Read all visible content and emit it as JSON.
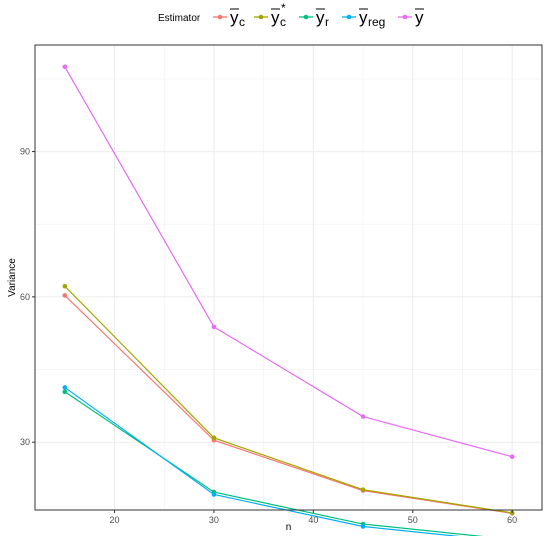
{
  "chart_data": {
    "type": "line",
    "title": "",
    "xlabel": "n",
    "ylabel": "Variance",
    "x": [
      15,
      30,
      45,
      60
    ],
    "xlim": [
      12,
      63
    ],
    "ylim": [
      16,
      112
    ],
    "xticks": [
      20,
      30,
      40,
      50,
      60
    ],
    "yticks": [
      30,
      60,
      90
    ],
    "grid": true,
    "legend": {
      "title": "Estimator",
      "placement": "top"
    },
    "series": [
      {
        "name": "yc",
        "display": {
          "base": "y",
          "sub": "c"
        },
        "color": "#F8766D",
        "values": [
          60.3,
          30.4,
          20.0,
          15.3
        ]
      },
      {
        "name": "yc*",
        "display": {
          "base": "y",
          "sub": "c",
          "sup": "*"
        },
        "color": "#A3A500",
        "values": [
          62.2,
          30.9,
          20.2,
          15.4
        ]
      },
      {
        "name": "yr",
        "display": {
          "base": "y",
          "sub": "r"
        },
        "color": "#00BF7D",
        "values": [
          40.4,
          19.7,
          13.1,
          9.9
        ]
      },
      {
        "name": "yreg",
        "display": {
          "base": "y",
          "sub": "reg"
        },
        "color": "#00B0F6",
        "values": [
          41.3,
          19.2,
          12.6,
          9.4
        ]
      },
      {
        "name": "y",
        "display": {
          "base": "y"
        },
        "color": "#E76BF3",
        "values": [
          107.5,
          53.8,
          35.3,
          27.0
        ]
      }
    ]
  }
}
